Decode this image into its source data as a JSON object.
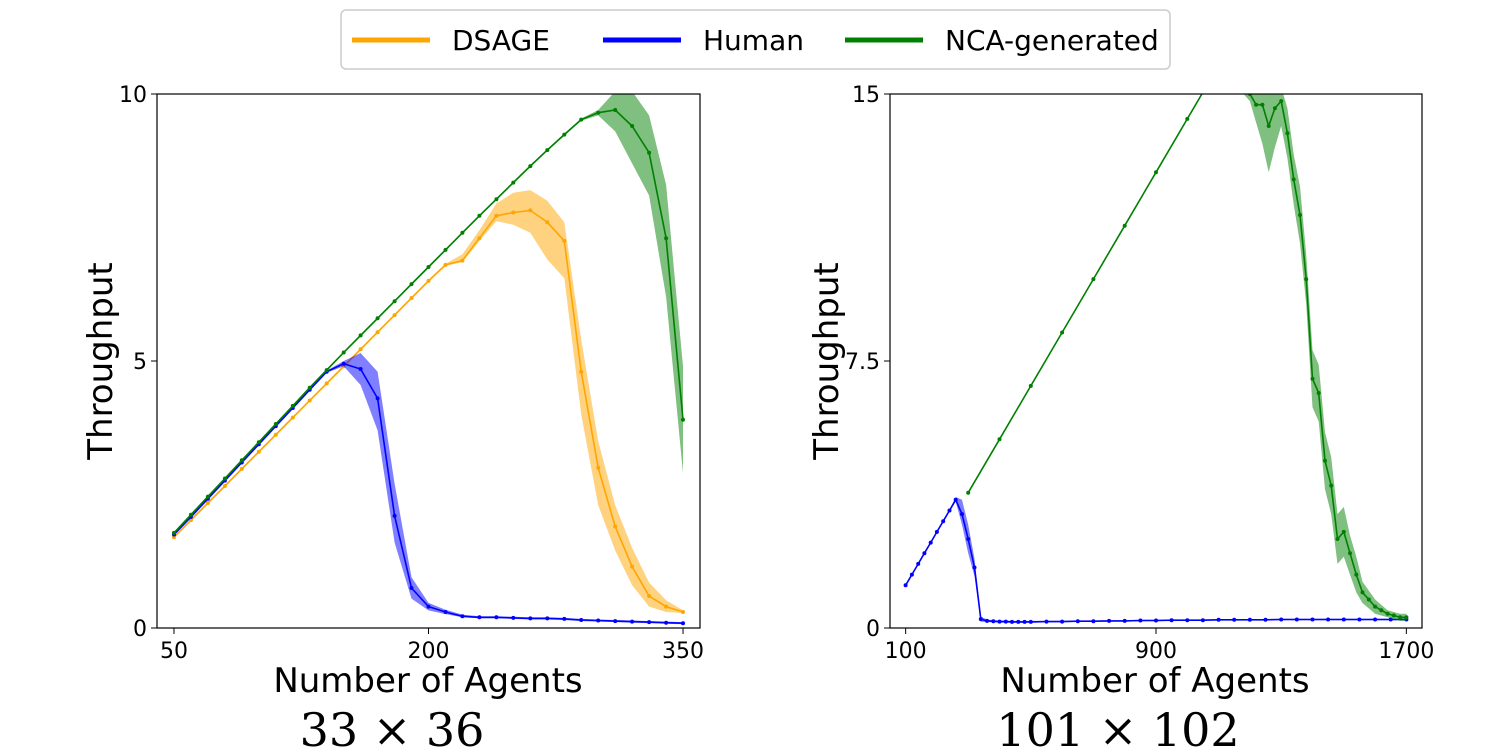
{
  "legend": {
    "entries": [
      {
        "label": "DSAGE",
        "color": "#FFA500"
      },
      {
        "label": "Human",
        "color": "#0000FF"
      },
      {
        "label": "NCA-generated",
        "color": "#008000"
      }
    ]
  },
  "chart_data": [
    {
      "type": "line",
      "subtitle": "33 × 36",
      "xlabel": "Number of Agents",
      "ylabel": "Throughput",
      "xlim": [
        40,
        360
      ],
      "ylim": [
        0,
        10
      ],
      "xticks": [
        50,
        200,
        350
      ],
      "yticks": [
        0,
        5,
        10
      ],
      "grid": false,
      "legend_position": "top-center",
      "series": [
        {
          "name": "DSAGE",
          "color": "#FFA500",
          "x": [
            50,
            60,
            70,
            80,
            90,
            100,
            110,
            120,
            130,
            140,
            150,
            160,
            170,
            180,
            190,
            200,
            210,
            220,
            230,
            240,
            250,
            260,
            270,
            280,
            290,
            300,
            310,
            320,
            330,
            340,
            350
          ],
          "y": [
            1.7,
            2.02,
            2.34,
            2.66,
            2.98,
            3.3,
            3.62,
            3.94,
            4.26,
            4.58,
            4.9,
            5.22,
            5.54,
            5.86,
            6.18,
            6.5,
            6.8,
            6.88,
            7.3,
            7.72,
            7.78,
            7.82,
            7.6,
            7.25,
            4.8,
            3.0,
            1.9,
            1.15,
            0.6,
            0.4,
            0.3
          ],
          "lower": [
            1.68,
            2.0,
            2.32,
            2.64,
            2.96,
            3.28,
            3.6,
            3.92,
            4.24,
            4.56,
            4.88,
            5.2,
            5.52,
            5.84,
            6.16,
            6.48,
            6.78,
            6.85,
            7.25,
            7.62,
            7.55,
            7.4,
            6.9,
            6.55,
            4.0,
            2.3,
            1.45,
            0.8,
            0.4,
            0.3,
            0.28
          ],
          "upper": [
            1.72,
            2.04,
            2.36,
            2.68,
            3.0,
            3.32,
            3.64,
            3.96,
            4.28,
            4.6,
            4.92,
            5.24,
            5.56,
            5.88,
            6.2,
            6.52,
            6.82,
            7.0,
            7.45,
            7.95,
            8.15,
            8.2,
            8.0,
            7.6,
            5.4,
            3.5,
            2.3,
            1.5,
            0.85,
            0.52,
            0.33
          ]
        },
        {
          "name": "Human",
          "color": "#0000FF",
          "x": [
            50,
            60,
            70,
            80,
            90,
            100,
            110,
            120,
            130,
            140,
            150,
            160,
            170,
            180,
            190,
            200,
            210,
            220,
            230,
            240,
            250,
            260,
            270,
            280,
            290,
            300,
            310,
            320,
            330,
            340,
            350
          ],
          "y": [
            1.75,
            2.08,
            2.42,
            2.76,
            3.1,
            3.44,
            3.78,
            4.12,
            4.46,
            4.8,
            4.95,
            4.85,
            4.3,
            2.1,
            0.75,
            0.4,
            0.3,
            0.22,
            0.2,
            0.2,
            0.19,
            0.18,
            0.18,
            0.17,
            0.15,
            0.14,
            0.13,
            0.12,
            0.11,
            0.1,
            0.09
          ],
          "lower": [
            1.73,
            2.06,
            2.4,
            2.74,
            3.08,
            3.42,
            3.76,
            4.1,
            4.44,
            4.78,
            4.9,
            4.55,
            3.7,
            1.6,
            0.55,
            0.33,
            0.26,
            0.2,
            0.18,
            0.18,
            0.17,
            0.16,
            0.16,
            0.15,
            0.13,
            0.12,
            0.11,
            0.1,
            0.09,
            0.08,
            0.07
          ],
          "upper": [
            1.77,
            2.1,
            2.44,
            2.78,
            3.12,
            3.46,
            3.8,
            4.14,
            4.48,
            4.82,
            5.0,
            5.15,
            4.8,
            2.7,
            0.95,
            0.47,
            0.34,
            0.25,
            0.22,
            0.22,
            0.21,
            0.2,
            0.2,
            0.19,
            0.17,
            0.16,
            0.15,
            0.14,
            0.13,
            0.12,
            0.11
          ]
        },
        {
          "name": "NCA-generated",
          "color": "#008000",
          "x": [
            50,
            60,
            70,
            80,
            90,
            100,
            110,
            120,
            130,
            140,
            150,
            160,
            170,
            180,
            190,
            200,
            210,
            220,
            230,
            240,
            250,
            260,
            270,
            280,
            290,
            300,
            310,
            320,
            330,
            340,
            350
          ],
          "y": [
            1.78,
            2.12,
            2.46,
            2.8,
            3.14,
            3.48,
            3.82,
            4.16,
            4.5,
            4.83,
            5.16,
            5.48,
            5.8,
            6.12,
            6.44,
            6.76,
            7.08,
            7.4,
            7.72,
            8.03,
            8.34,
            8.65,
            8.95,
            9.24,
            9.52,
            9.65,
            9.7,
            9.4,
            8.9,
            7.3,
            3.9
          ],
          "lower": [
            1.76,
            2.1,
            2.44,
            2.78,
            3.12,
            3.46,
            3.8,
            4.14,
            4.48,
            4.81,
            5.14,
            5.46,
            5.78,
            6.1,
            6.42,
            6.74,
            7.06,
            7.38,
            7.7,
            8.01,
            8.32,
            8.63,
            8.93,
            9.22,
            9.5,
            9.6,
            9.3,
            8.7,
            8.1,
            6.2,
            2.9
          ],
          "upper": [
            1.8,
            2.14,
            2.48,
            2.82,
            3.16,
            3.5,
            3.84,
            4.18,
            4.52,
            4.85,
            5.18,
            5.5,
            5.82,
            6.14,
            6.46,
            6.78,
            7.1,
            7.42,
            7.74,
            8.05,
            8.36,
            8.67,
            8.97,
            9.26,
            9.54,
            9.7,
            10.05,
            10.05,
            9.6,
            8.3,
            4.9
          ]
        }
      ]
    },
    {
      "type": "line",
      "subtitle": "101 × 102",
      "xlabel": "Number of Agents",
      "ylabel": "Throughput",
      "xlim": [
        50,
        1750
      ],
      "ylim": [
        0,
        15
      ],
      "xticks": [
        100,
        900,
        1700
      ],
      "yticks": [
        0,
        7.5,
        15
      ],
      "ytick_labels": [
        "0",
        "7.5",
        "15"
      ],
      "grid": false,
      "series": [
        {
          "name": "Human",
          "color": "#0000FF",
          "x": [
            100,
            120,
            140,
            160,
            180,
            200,
            220,
            240,
            260,
            280,
            300,
            320,
            340,
            360,
            380,
            400,
            420,
            440,
            460,
            480,
            500,
            550,
            600,
            650,
            700,
            750,
            800,
            850,
            900,
            950,
            1000,
            1050,
            1100,
            1150,
            1200,
            1250,
            1300,
            1350,
            1400,
            1450,
            1500,
            1550,
            1600,
            1650,
            1700
          ],
          "y": [
            1.2,
            1.5,
            1.8,
            2.1,
            2.4,
            2.7,
            3.0,
            3.3,
            3.6,
            3.2,
            2.5,
            1.7,
            0.25,
            0.2,
            0.19,
            0.18,
            0.18,
            0.17,
            0.17,
            0.17,
            0.17,
            0.18,
            0.18,
            0.19,
            0.19,
            0.2,
            0.2,
            0.21,
            0.21,
            0.22,
            0.22,
            0.22,
            0.23,
            0.23,
            0.23,
            0.23,
            0.24,
            0.24,
            0.24,
            0.24,
            0.24,
            0.24,
            0.24,
            0.24,
            0.24
          ],
          "lower": [
            1.18,
            1.48,
            1.78,
            2.08,
            2.38,
            2.68,
            2.98,
            3.28,
            3.55,
            2.9,
            2.1,
            1.45,
            0.18,
            0.16,
            0.16,
            0.15,
            0.15,
            0.15,
            0.15,
            0.15,
            0.15,
            0.16,
            0.16,
            0.17,
            0.17,
            0.18,
            0.18,
            0.19,
            0.19,
            0.2,
            0.2,
            0.2,
            0.21,
            0.21,
            0.21,
            0.21,
            0.22,
            0.22,
            0.22,
            0.22,
            0.22,
            0.22,
            0.22,
            0.22,
            0.22
          ],
          "upper": [
            1.22,
            1.52,
            1.82,
            2.12,
            2.42,
            2.72,
            3.02,
            3.32,
            3.68,
            3.6,
            2.9,
            1.95,
            0.32,
            0.24,
            0.22,
            0.21,
            0.21,
            0.2,
            0.2,
            0.2,
            0.2,
            0.2,
            0.2,
            0.21,
            0.21,
            0.22,
            0.22,
            0.23,
            0.23,
            0.24,
            0.24,
            0.24,
            0.25,
            0.25,
            0.25,
            0.25,
            0.26,
            0.26,
            0.26,
            0.26,
            0.26,
            0.26,
            0.26,
            0.26,
            0.26
          ]
        },
        {
          "name": "NCA-generated",
          "color": "#008000",
          "x": [
            300,
            400,
            500,
            600,
            700,
            800,
            900,
            1000,
            1100,
            1200,
            1220,
            1240,
            1260,
            1280,
            1300,
            1320,
            1340,
            1360,
            1380,
            1400,
            1420,
            1440,
            1460,
            1480,
            1500,
            1520,
            1540,
            1560,
            1580,
            1600,
            1620,
            1640,
            1660,
            1680,
            1700
          ],
          "y": [
            3.8,
            5.3,
            6.8,
            8.3,
            9.8,
            11.3,
            12.8,
            14.3,
            15.8,
            15.0,
            14.7,
            14.7,
            14.1,
            14.6,
            14.8,
            13.9,
            12.6,
            11.6,
            9.8,
            7.0,
            6.6,
            4.7,
            4.0,
            2.5,
            2.7,
            2.1,
            1.5,
            1.0,
            0.8,
            0.6,
            0.5,
            0.4,
            0.35,
            0.3,
            0.3
          ],
          "lower": [
            3.78,
            5.28,
            6.78,
            8.28,
            9.78,
            11.28,
            12.78,
            14.28,
            15.78,
            14.8,
            14.2,
            13.6,
            12.8,
            13.5,
            14.1,
            13.2,
            11.9,
            10.8,
            9.1,
            6.2,
            5.8,
            3.9,
            3.2,
            1.8,
            2.0,
            1.5,
            1.0,
            0.7,
            0.55,
            0.4,
            0.35,
            0.3,
            0.25,
            0.2,
            0.2
          ],
          "upper": [
            3.82,
            5.32,
            6.82,
            8.32,
            9.82,
            11.32,
            12.82,
            14.32,
            15.82,
            15.2,
            15.2,
            15.2,
            15.2,
            15.2,
            15.2,
            14.6,
            13.3,
            12.4,
            10.5,
            7.8,
            7.4,
            5.5,
            4.8,
            3.2,
            3.4,
            2.6,
            2.0,
            1.3,
            1.05,
            0.8,
            0.65,
            0.5,
            0.45,
            0.4,
            0.4
          ]
        }
      ]
    }
  ]
}
